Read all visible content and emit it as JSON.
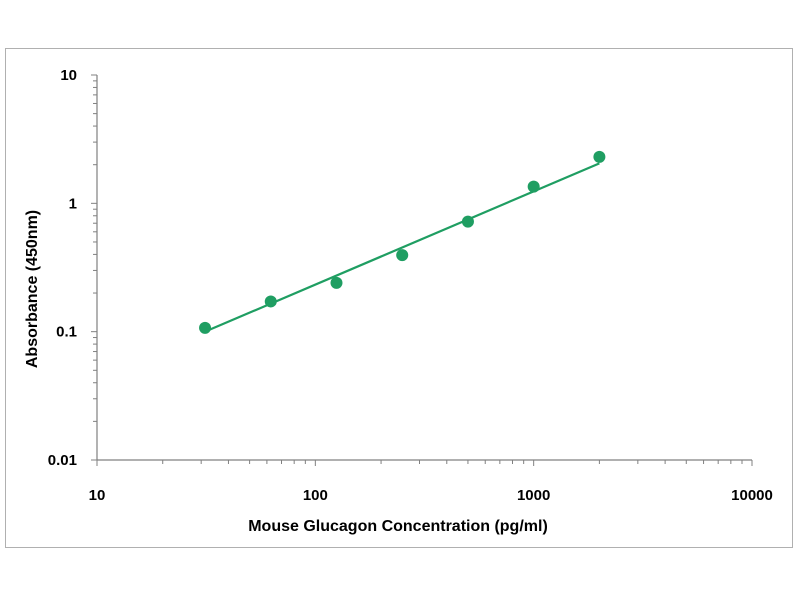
{
  "chart_data": {
    "type": "scatter",
    "title": "",
    "xlabel": "Mouse Glucagon Concentration (pg/ml)",
    "ylabel": "Absorbance (450nm)",
    "xscale": "log",
    "yscale": "log",
    "xlim": [
      10,
      10000
    ],
    "ylim": [
      0.01,
      10
    ],
    "x_tick_labels": [
      "10",
      "100",
      "1000",
      "10000"
    ],
    "y_tick_labels": [
      "0.01",
      "0.1",
      "1",
      "10"
    ],
    "grid": false,
    "legend": "none",
    "colors": {
      "series": "#1f9e62",
      "axis": "#808080"
    },
    "series": [
      {
        "points": [
          {
            "x": 31.25,
            "y": 0.107
          },
          {
            "x": 62.5,
            "y": 0.172
          },
          {
            "x": 125,
            "y": 0.24
          },
          {
            "x": 250,
            "y": 0.395
          },
          {
            "x": 500,
            "y": 0.72
          },
          {
            "x": 1000,
            "y": 1.35
          },
          {
            "x": 2000,
            "y": 2.3
          }
        ],
        "fit_line": [
          {
            "x": 31.25,
            "y": 0.1
          },
          {
            "x": 2000,
            "y": 2.05
          }
        ]
      }
    ]
  }
}
